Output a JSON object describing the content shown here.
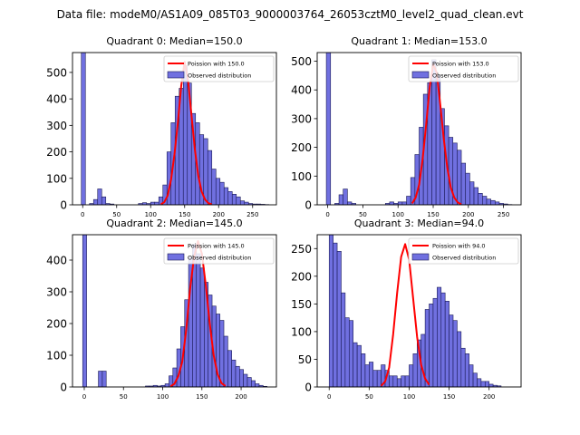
{
  "suptitle": "Data file: modeM0/AS1A09_085T03_9000003764_26053cztM0_level2_quad_clean.evt",
  "colors": {
    "hist_fill": "#7070e0",
    "hist_edge": "#1a1a55",
    "poisson": "#ff0000",
    "axis": "#000000"
  },
  "chart_data": [
    {
      "type": "bar",
      "title": "Quadrant 0: Median=150.0",
      "legend": {
        "line": "Poission with 150.0",
        "patch": "Observed distribution",
        "placement": "top-right"
      },
      "xlim": [
        -15,
        285
      ],
      "ylim": [
        0,
        575
      ],
      "xticks": [
        0,
        50,
        100,
        150,
        200,
        250
      ],
      "yticks": [
        0,
        100,
        200,
        300,
        400,
        500
      ],
      "bin_width": 6,
      "bins": [
        [
          -2,
          575
        ],
        [
          10,
          5
        ],
        [
          16,
          20
        ],
        [
          22,
          60
        ],
        [
          28,
          30
        ],
        [
          34,
          5
        ],
        [
          40,
          3
        ],
        [
          82,
          5
        ],
        [
          88,
          8
        ],
        [
          94,
          5
        ],
        [
          100,
          10
        ],
        [
          106,
          10
        ],
        [
          112,
          30
        ],
        [
          118,
          75
        ],
        [
          124,
          200
        ],
        [
          130,
          310
        ],
        [
          136,
          410
        ],
        [
          142,
          440
        ],
        [
          148,
          525
        ],
        [
          154,
          460
        ],
        [
          160,
          345
        ],
        [
          166,
          310
        ],
        [
          172,
          265
        ],
        [
          178,
          250
        ],
        [
          184,
          205
        ],
        [
          190,
          135
        ],
        [
          196,
          100
        ],
        [
          202,
          85
        ],
        [
          208,
          65
        ],
        [
          214,
          50
        ],
        [
          220,
          40
        ],
        [
          226,
          30
        ],
        [
          232,
          15
        ],
        [
          238,
          10
        ],
        [
          244,
          5
        ],
        [
          250,
          3
        ],
        [
          256,
          3
        ],
        [
          262,
          2
        ],
        [
          268,
          1
        ]
      ],
      "poisson": [
        [
          115,
          2
        ],
        [
          120,
          10
        ],
        [
          125,
          35
        ],
        [
          130,
          95
        ],
        [
          135,
          190
        ],
        [
          140,
          310
        ],
        [
          145,
          450
        ],
        [
          150,
          540
        ],
        [
          155,
          470
        ],
        [
          160,
          340
        ],
        [
          165,
          210
        ],
        [
          170,
          110
        ],
        [
          175,
          50
        ],
        [
          180,
          20
        ],
        [
          185,
          6
        ],
        [
          190,
          2
        ]
      ]
    },
    {
      "type": "bar",
      "title": "Quadrant 1: Median=153.0",
      "legend": {
        "line": "Poission with 153.0",
        "patch": "Observed distribution",
        "placement": "top-right"
      },
      "xlim": [
        -15,
        275
      ],
      "ylim": [
        0,
        530
      ],
      "xticks": [
        0,
        50,
        100,
        150,
        200,
        250
      ],
      "yticks": [
        0,
        100,
        200,
        300,
        400,
        500
      ],
      "bin_width": 6,
      "bins": [
        [
          -2,
          530
        ],
        [
          10,
          5
        ],
        [
          16,
          35
        ],
        [
          22,
          55
        ],
        [
          28,
          10
        ],
        [
          34,
          5
        ],
        [
          82,
          5
        ],
        [
          88,
          10
        ],
        [
          94,
          5
        ],
        [
          100,
          10
        ],
        [
          106,
          10
        ],
        [
          112,
          30
        ],
        [
          118,
          95
        ],
        [
          124,
          175
        ],
        [
          130,
          270
        ],
        [
          136,
          385
        ],
        [
          142,
          425
        ],
        [
          148,
          505
        ],
        [
          154,
          450
        ],
        [
          160,
          335
        ],
        [
          166,
          275
        ],
        [
          172,
          235
        ],
        [
          178,
          215
        ],
        [
          184,
          190
        ],
        [
          190,
          145
        ],
        [
          196,
          110
        ],
        [
          202,
          80
        ],
        [
          208,
          60
        ],
        [
          214,
          40
        ],
        [
          220,
          30
        ],
        [
          226,
          20
        ],
        [
          232,
          15
        ],
        [
          238,
          10
        ],
        [
          244,
          5
        ],
        [
          250,
          3
        ],
        [
          256,
          1
        ]
      ],
      "poisson": [
        [
          120,
          5
        ],
        [
          125,
          25
        ],
        [
          130,
          70
        ],
        [
          135,
          160
        ],
        [
          140,
          280
        ],
        [
          145,
          410
        ],
        [
          150,
          490
        ],
        [
          155,
          460
        ],
        [
          160,
          350
        ],
        [
          165,
          230
        ],
        [
          170,
          130
        ],
        [
          175,
          60
        ],
        [
          180,
          25
        ],
        [
          185,
          8
        ],
        [
          190,
          2
        ]
      ]
    },
    {
      "type": "bar",
      "title": "Quadrant 2: Median=145.0",
      "legend": {
        "line": "Poission with 145.0",
        "patch": "Observed distribution",
        "placement": "top-right"
      },
      "xlim": [
        -15,
        245
      ],
      "ylim": [
        0,
        480
      ],
      "xticks": [
        0,
        50,
        100,
        150,
        200
      ],
      "yticks": [
        0,
        100,
        200,
        300,
        400
      ],
      "bin_width": 5,
      "bins": [
        [
          -2,
          480
        ],
        [
          18,
          50
        ],
        [
          23,
          50
        ],
        [
          78,
          3
        ],
        [
          83,
          3
        ],
        [
          88,
          5
        ],
        [
          93,
          3
        ],
        [
          98,
          5
        ],
        [
          103,
          10
        ],
        [
          108,
          35
        ],
        [
          113,
          60
        ],
        [
          118,
          120
        ],
        [
          123,
          190
        ],
        [
          128,
          275
        ],
        [
          133,
          410
        ],
        [
          138,
          450
        ],
        [
          143,
          420
        ],
        [
          148,
          375
        ],
        [
          153,
          330
        ],
        [
          158,
          290
        ],
        [
          163,
          255
        ],
        [
          168,
          230
        ],
        [
          173,
          210
        ],
        [
          178,
          160
        ],
        [
          183,
          115
        ],
        [
          188,
          85
        ],
        [
          193,
          65
        ],
        [
          198,
          55
        ],
        [
          203,
          40
        ],
        [
          208,
          30
        ],
        [
          213,
          20
        ],
        [
          218,
          10
        ],
        [
          223,
          5
        ],
        [
          228,
          2
        ]
      ],
      "poisson": [
        [
          110,
          2
        ],
        [
          115,
          10
        ],
        [
          120,
          35
        ],
        [
          125,
          80
        ],
        [
          130,
          180
        ],
        [
          135,
          310
        ],
        [
          140,
          410
        ],
        [
          145,
          460
        ],
        [
          150,
          420
        ],
        [
          155,
          320
        ],
        [
          160,
          200
        ],
        [
          165,
          100
        ],
        [
          170,
          40
        ],
        [
          175,
          12
        ],
        [
          180,
          3
        ]
      ]
    },
    {
      "type": "bar",
      "title": "Quadrant 3: Median=94.0",
      "legend": {
        "line": "Poission with 94.0",
        "patch": "Observed distribution",
        "placement": "top-right"
      },
      "xlim": [
        -15,
        240
      ],
      "ylim": [
        0,
        275
      ],
      "xticks": [
        0,
        50,
        100,
        150,
        200
      ],
      "yticks": [
        0,
        50,
        100,
        150,
        200,
        250
      ],
      "bin_width": 5,
      "bins": [
        [
          0,
          275
        ],
        [
          5,
          260
        ],
        [
          10,
          245
        ],
        [
          15,
          170
        ],
        [
          20,
          125
        ],
        [
          25,
          120
        ],
        [
          30,
          80
        ],
        [
          35,
          75
        ],
        [
          40,
          60
        ],
        [
          45,
          40
        ],
        [
          50,
          45
        ],
        [
          55,
          30
        ],
        [
          60,
          30
        ],
        [
          65,
          40
        ],
        [
          70,
          30
        ],
        [
          75,
          20
        ],
        [
          80,
          20
        ],
        [
          85,
          15
        ],
        [
          90,
          20
        ],
        [
          95,
          20
        ],
        [
          100,
          40
        ],
        [
          105,
          60
        ],
        [
          110,
          85
        ],
        [
          115,
          95
        ],
        [
          120,
          140
        ],
        [
          125,
          150
        ],
        [
          130,
          160
        ],
        [
          135,
          180
        ],
        [
          140,
          170
        ],
        [
          145,
          155
        ],
        [
          150,
          130
        ],
        [
          155,
          120
        ],
        [
          160,
          100
        ],
        [
          165,
          70
        ],
        [
          170,
          60
        ],
        [
          175,
          40
        ],
        [
          180,
          25
        ],
        [
          185,
          15
        ],
        [
          190,
          10
        ],
        [
          195,
          10
        ],
        [
          200,
          5
        ],
        [
          205,
          3
        ],
        [
          210,
          2
        ]
      ],
      "poisson": [
        [
          65,
          2
        ],
        [
          70,
          10
        ],
        [
          75,
          35
        ],
        [
          80,
          95
        ],
        [
          85,
          170
        ],
        [
          90,
          235
        ],
        [
          95,
          258
        ],
        [
          100,
          230
        ],
        [
          105,
          160
        ],
        [
          110,
          90
        ],
        [
          115,
          40
        ],
        [
          120,
          15
        ],
        [
          125,
          4
        ]
      ]
    }
  ]
}
